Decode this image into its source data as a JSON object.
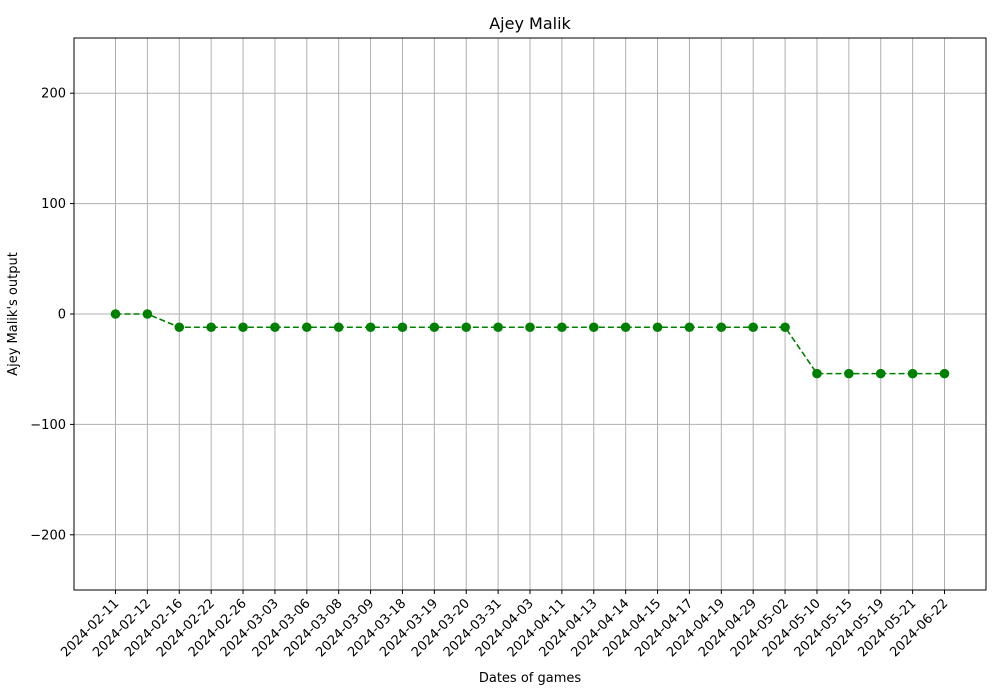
{
  "chart_data": {
    "type": "line",
    "title": "Ajey Malik",
    "xlabel": "Dates of games",
    "ylabel": "Ajey Malik's output",
    "ylim": [
      -250,
      250
    ],
    "yticks": [
      -200,
      -100,
      0,
      100,
      200
    ],
    "ytick_labels": [
      "−200",
      "−100",
      "0",
      "100",
      "200"
    ],
    "grid": true,
    "line_style": "dashed",
    "marker": "circle",
    "color": "#008000",
    "categories": [
      "2024-02-11",
      "2024-02-12",
      "2024-02-16",
      "2024-02-22",
      "2024-02-26",
      "2024-03-03",
      "2024-03-06",
      "2024-03-08",
      "2024-03-09",
      "2024-03-18",
      "2024-03-19",
      "2024-03-20",
      "2024-03-31",
      "2024-04-03",
      "2024-04-11",
      "2024-04-13",
      "2024-04-14",
      "2024-04-15",
      "2024-04-17",
      "2024-04-19",
      "2024-04-29",
      "2024-05-02",
      "2024-05-10",
      "2024-05-15",
      "2024-05-19",
      "2024-05-21",
      "2024-06-22"
    ],
    "series": [
      {
        "values": [
          0,
          0,
          -12,
          -12,
          -12,
          -12,
          -12,
          -12,
          -12,
          -12,
          -12,
          -12,
          -12,
          -12,
          -12,
          -12,
          -12,
          -12,
          -12,
          -12,
          -12,
          -12,
          -54,
          -54,
          -54,
          -54,
          -54
        ]
      }
    ]
  }
}
